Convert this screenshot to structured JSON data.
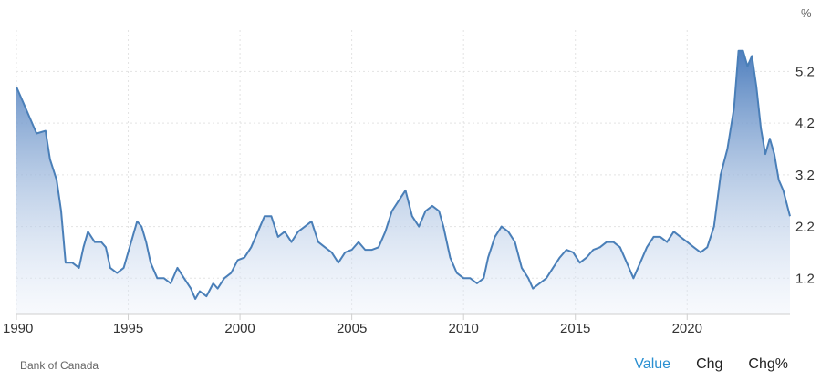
{
  "chart_data": {
    "type": "area",
    "unit": "%",
    "y_ticks": [
      1.2,
      2.2,
      3.2,
      4.2,
      5.2
    ],
    "x_ticks": [
      1990,
      1995,
      2000,
      2005,
      2010,
      2015,
      2020
    ],
    "xlim": [
      1990,
      2024.6
    ],
    "ylim": [
      0.5,
      6.0
    ],
    "grid": true,
    "series": [
      {
        "points": [
          [
            1990.0,
            4.9
          ],
          [
            1990.3,
            4.6
          ],
          [
            1990.6,
            4.3
          ],
          [
            1990.9,
            4.0
          ],
          [
            1991.3,
            4.05
          ],
          [
            1991.5,
            3.5
          ],
          [
            1991.8,
            3.1
          ],
          [
            1992.0,
            2.5
          ],
          [
            1992.2,
            1.5
          ],
          [
            1992.5,
            1.5
          ],
          [
            1992.8,
            1.4
          ],
          [
            1993.0,
            1.8
          ],
          [
            1993.2,
            2.1
          ],
          [
            1993.5,
            1.9
          ],
          [
            1993.8,
            1.9
          ],
          [
            1994.0,
            1.8
          ],
          [
            1994.2,
            1.4
          ],
          [
            1994.5,
            1.3
          ],
          [
            1994.8,
            1.4
          ],
          [
            1995.0,
            1.7
          ],
          [
            1995.2,
            2.0
          ],
          [
            1995.4,
            2.3
          ],
          [
            1995.6,
            2.2
          ],
          [
            1995.8,
            1.9
          ],
          [
            1996.0,
            1.5
          ],
          [
            1996.3,
            1.2
          ],
          [
            1996.6,
            1.2
          ],
          [
            1996.9,
            1.1
          ],
          [
            1997.2,
            1.4
          ],
          [
            1997.5,
            1.2
          ],
          [
            1997.8,
            1.0
          ],
          [
            1998.0,
            0.8
          ],
          [
            1998.2,
            0.95
          ],
          [
            1998.5,
            0.85
          ],
          [
            1998.8,
            1.1
          ],
          [
            1999.0,
            1.0
          ],
          [
            1999.3,
            1.2
          ],
          [
            1999.6,
            1.3
          ],
          [
            1999.9,
            1.55
          ],
          [
            2000.2,
            1.6
          ],
          [
            2000.5,
            1.8
          ],
          [
            2000.8,
            2.1
          ],
          [
            2001.1,
            2.4
          ],
          [
            2001.4,
            2.4
          ],
          [
            2001.7,
            2.0
          ],
          [
            2002.0,
            2.1
          ],
          [
            2002.3,
            1.9
          ],
          [
            2002.6,
            2.1
          ],
          [
            2002.9,
            2.2
          ],
          [
            2003.2,
            2.3
          ],
          [
            2003.5,
            1.9
          ],
          [
            2003.8,
            1.8
          ],
          [
            2004.1,
            1.7
          ],
          [
            2004.4,
            1.5
          ],
          [
            2004.7,
            1.7
          ],
          [
            2005.0,
            1.75
          ],
          [
            2005.3,
            1.9
          ],
          [
            2005.6,
            1.75
          ],
          [
            2005.9,
            1.75
          ],
          [
            2006.2,
            1.8
          ],
          [
            2006.5,
            2.1
          ],
          [
            2006.8,
            2.5
          ],
          [
            2007.1,
            2.7
          ],
          [
            2007.4,
            2.9
          ],
          [
            2007.7,
            2.4
          ],
          [
            2008.0,
            2.2
          ],
          [
            2008.3,
            2.5
          ],
          [
            2008.6,
            2.6
          ],
          [
            2008.9,
            2.5
          ],
          [
            2009.1,
            2.2
          ],
          [
            2009.4,
            1.6
          ],
          [
            2009.7,
            1.3
          ],
          [
            2010.0,
            1.2
          ],
          [
            2010.3,
            1.2
          ],
          [
            2010.6,
            1.1
          ],
          [
            2010.9,
            1.2
          ],
          [
            2011.1,
            1.6
          ],
          [
            2011.4,
            2.0
          ],
          [
            2011.7,
            2.2
          ],
          [
            2012.0,
            2.1
          ],
          [
            2012.3,
            1.9
          ],
          [
            2012.6,
            1.4
          ],
          [
            2012.9,
            1.2
          ],
          [
            2013.1,
            1.0
          ],
          [
            2013.4,
            1.1
          ],
          [
            2013.7,
            1.2
          ],
          [
            2014.0,
            1.4
          ],
          [
            2014.3,
            1.6
          ],
          [
            2014.6,
            1.75
          ],
          [
            2014.9,
            1.7
          ],
          [
            2015.2,
            1.5
          ],
          [
            2015.5,
            1.6
          ],
          [
            2015.8,
            1.75
          ],
          [
            2016.1,
            1.8
          ],
          [
            2016.4,
            1.9
          ],
          [
            2016.7,
            1.9
          ],
          [
            2017.0,
            1.8
          ],
          [
            2017.3,
            1.5
          ],
          [
            2017.6,
            1.2
          ],
          [
            2017.9,
            1.5
          ],
          [
            2018.2,
            1.8
          ],
          [
            2018.5,
            2.0
          ],
          [
            2018.8,
            2.0
          ],
          [
            2019.1,
            1.9
          ],
          [
            2019.4,
            2.1
          ],
          [
            2019.7,
            2.0
          ],
          [
            2020.0,
            1.9
          ],
          [
            2020.3,
            1.8
          ],
          [
            2020.6,
            1.7
          ],
          [
            2020.9,
            1.8
          ],
          [
            2021.2,
            2.2
          ],
          [
            2021.5,
            3.2
          ],
          [
            2021.8,
            3.7
          ],
          [
            2022.1,
            4.5
          ],
          [
            2022.3,
            5.6
          ],
          [
            2022.5,
            5.6
          ],
          [
            2022.7,
            5.3
          ],
          [
            2022.9,
            5.5
          ],
          [
            2023.1,
            4.9
          ],
          [
            2023.3,
            4.1
          ],
          [
            2023.5,
            3.6
          ],
          [
            2023.7,
            3.9
          ],
          [
            2023.9,
            3.6
          ],
          [
            2024.1,
            3.1
          ],
          [
            2024.3,
            2.9
          ],
          [
            2024.6,
            2.4
          ]
        ]
      }
    ],
    "colors": {
      "line": "#4a7fb8",
      "fill_top": "#4f7fbe",
      "fill_bottom": "#eaf0fa",
      "grid": "#e3e3e3"
    }
  },
  "unit_label": "%",
  "source": "Bank of Canada",
  "tabs": [
    {
      "label": "Value",
      "active": true
    },
    {
      "label": "Chg",
      "active": false
    },
    {
      "label": "Chg%",
      "active": false
    }
  ]
}
